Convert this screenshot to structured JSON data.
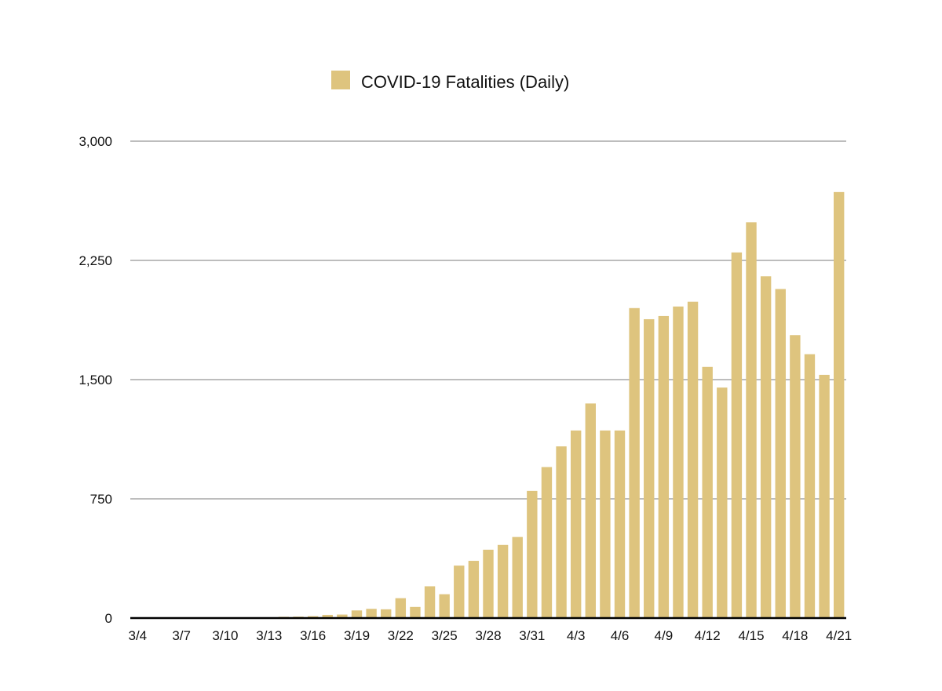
{
  "chart_data": {
    "type": "bar",
    "title": "",
    "xlabel": "",
    "ylabel": "",
    "legend": {
      "placement": "top-center"
    },
    "grid": true,
    "ylim": [
      0,
      3000
    ],
    "yticks": [
      0,
      750,
      1500,
      2250,
      3000
    ],
    "ytick_labels": [
      "0",
      "750",
      "1,500",
      "2,250",
      "3,000"
    ],
    "categories": [
      "3/4",
      "3/5",
      "3/6",
      "3/7",
      "3/8",
      "3/9",
      "3/10",
      "3/11",
      "3/12",
      "3/13",
      "3/14",
      "3/15",
      "3/16",
      "3/17",
      "3/18",
      "3/19",
      "3/20",
      "3/21",
      "3/22",
      "3/23",
      "3/24",
      "3/25",
      "3/26",
      "3/27",
      "3/28",
      "3/29",
      "3/30",
      "3/31",
      "4/1",
      "4/2",
      "4/3",
      "4/4",
      "4/5",
      "4/6",
      "4/7",
      "4/8",
      "4/9",
      "4/10",
      "4/11",
      "4/12",
      "4/13",
      "4/14",
      "4/15",
      "4/16",
      "4/17",
      "4/18",
      "4/19",
      "4/20",
      "4/21"
    ],
    "xtick_labels": [
      "3/4",
      "3/7",
      "3/10",
      "3/13",
      "3/16",
      "3/19",
      "3/22",
      "3/25",
      "3/28",
      "3/31",
      "4/3",
      "4/6",
      "4/9",
      "4/12",
      "4/15",
      "4/18",
      "4/21"
    ],
    "xtick_every": 3,
    "series": [
      {
        "name": "COVID-19 Fatalities (Daily)",
        "color": "#dec47e",
        "values": [
          1,
          1,
          1,
          1,
          1,
          2,
          3,
          3,
          4,
          4,
          8,
          9,
          12,
          20,
          22,
          48,
          58,
          55,
          125,
          70,
          200,
          150,
          330,
          360,
          430,
          460,
          510,
          800,
          950,
          1080,
          1180,
          1350,
          1180,
          1180,
          1950,
          1880,
          1900,
          1960,
          1990,
          1580,
          1450,
          2300,
          2490,
          2150,
          2070,
          1780,
          1660,
          1530,
          2680
        ]
      }
    ]
  }
}
